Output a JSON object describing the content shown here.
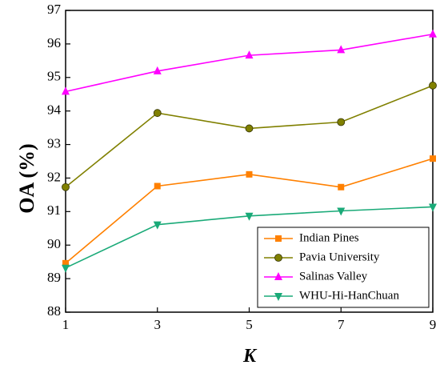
{
  "chart_data": {
    "type": "line",
    "title": "",
    "xlabel": "K",
    "ylabel": "OA (%)",
    "x": [
      1,
      3,
      5,
      7,
      9
    ],
    "xlim": [
      1,
      9
    ],
    "ylim": [
      88,
      97
    ],
    "xticks": [
      1,
      3,
      5,
      7,
      9
    ],
    "yticks": [
      88,
      89,
      90,
      91,
      92,
      93,
      94,
      95,
      96,
      97
    ],
    "grid": false,
    "legend_position": "bottom-right",
    "series": [
      {
        "name": "Indian Pines",
        "color": "#ff8000",
        "marker": "square",
        "values": [
          89.46,
          91.76,
          92.11,
          91.73,
          92.58
        ]
      },
      {
        "name": "Pavia University",
        "color": "#808000",
        "marker": "circle",
        "values": [
          91.73,
          93.94,
          93.48,
          93.67,
          94.76
        ]
      },
      {
        "name": "Salinas Valley",
        "color": "#ff00ff",
        "marker": "triangle-up",
        "values": [
          94.58,
          95.19,
          95.66,
          95.82,
          96.29
        ]
      },
      {
        "name": "WHU-Hi-HanChuan",
        "color": "#1aaa78",
        "marker": "triangle-down",
        "values": [
          89.32,
          90.61,
          90.87,
          91.02,
          91.14
        ]
      }
    ]
  }
}
